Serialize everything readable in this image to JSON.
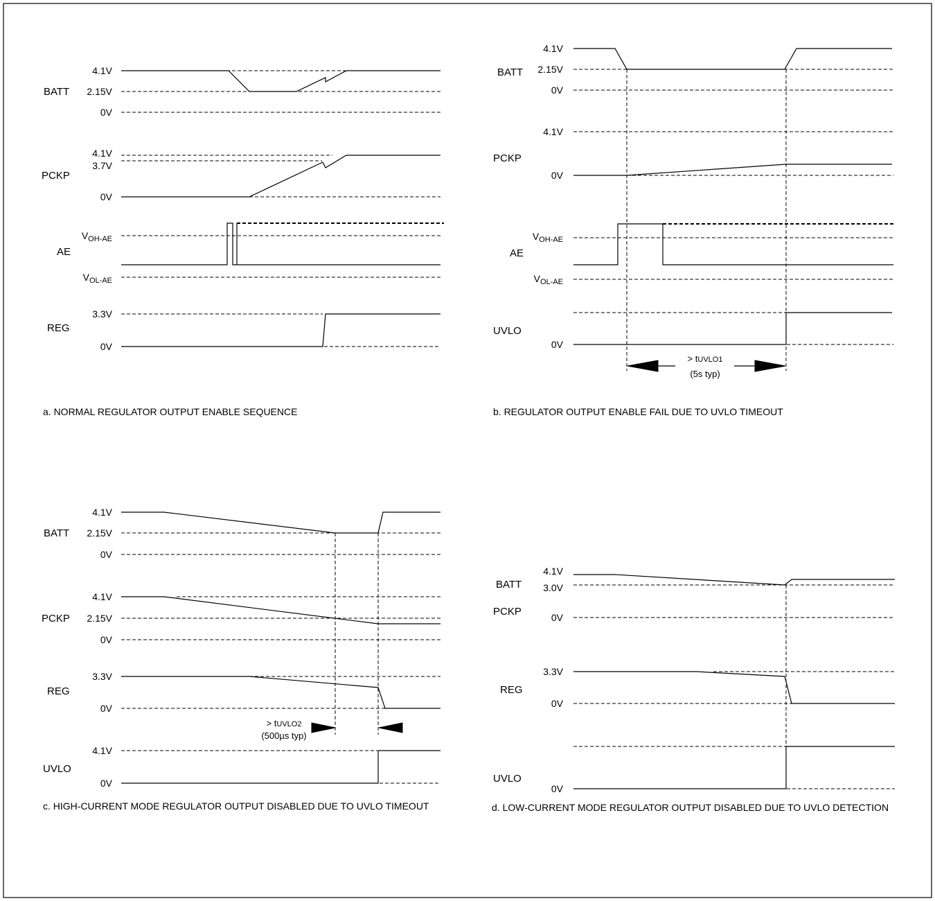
{
  "panel_a": {
    "caption": "a. NORMAL REGULATOR OUTPUT ENABLE SEQUENCE",
    "signals": {
      "batt": "BATT",
      "pckp": "PCKP",
      "ae": "AE",
      "reg": "REG"
    },
    "levels": {
      "batt_high": "4.1V",
      "batt_low": "2.15V",
      "batt_zero": "0V",
      "pckp_high": "4.1V",
      "pckp_mid": "3.7V",
      "pckp_zero": "0V",
      "ae_oh": "V",
      "ae_oh_sub": "OH-AE",
      "ae_ol": "V",
      "ae_ol_sub": "OL-AE",
      "reg_high": "3.3V",
      "reg_zero": "0V"
    }
  },
  "panel_b": {
    "caption": "b. REGULATOR OUTPUT ENABLE FAIL DUE TO UVLO TIMEOUT",
    "signals": {
      "batt": "BATT",
      "pckp": "PCKP",
      "ae": "AE",
      "uvlo": "UVLO"
    },
    "levels": {
      "batt_high": "4.1V",
      "batt_low": "2.15V",
      "batt_zero": "0V",
      "pckp_high": "4.1V",
      "pckp_zero": "0V",
      "ae_oh": "V",
      "ae_oh_sub": "OH-AE",
      "ae_ol": "V",
      "ae_ol_sub": "OL-AE",
      "uvlo_zero": "0V"
    },
    "timing": {
      "prefix": "> t",
      "sub": "UVLO1",
      "typ": "(5s typ)"
    }
  },
  "panel_c": {
    "caption": "c. HIGH-CURRENT MODE REGULATOR OUTPUT DISABLED DUE TO UVLO TIMEOUT",
    "signals": {
      "batt": "BATT",
      "pckp": "PCKP",
      "reg": "REG",
      "uvlo": "UVLO"
    },
    "levels": {
      "batt_high": "4.1V",
      "batt_low": "2.15V",
      "batt_zero": "0V",
      "pckp_high": "4.1V",
      "pckp_mid": "2.15V",
      "pckp_zero": "0V",
      "reg_high": "3.3V",
      "reg_zero": "0V",
      "uvlo_high": "4.1V",
      "uvlo_zero": "0V"
    },
    "timing": {
      "prefix": "> t",
      "sub": "UVLO2",
      "typ": "(500µs typ)"
    }
  },
  "panel_d": {
    "caption": "d. LOW-CURRENT MODE REGULATOR OUTPUT DISABLED DUE TO UVLO DETECTION",
    "signals": {
      "batt": "BATT",
      "pckp": "PCKP",
      "reg": "REG",
      "uvlo": "UVLO"
    },
    "levels": {
      "batt_high": "4.1V",
      "batt_mid": "3.0V",
      "pckp_zero": "0V",
      "reg_high": "3.3V",
      "reg_zero": "0V",
      "uvlo_zero": "0V"
    }
  }
}
